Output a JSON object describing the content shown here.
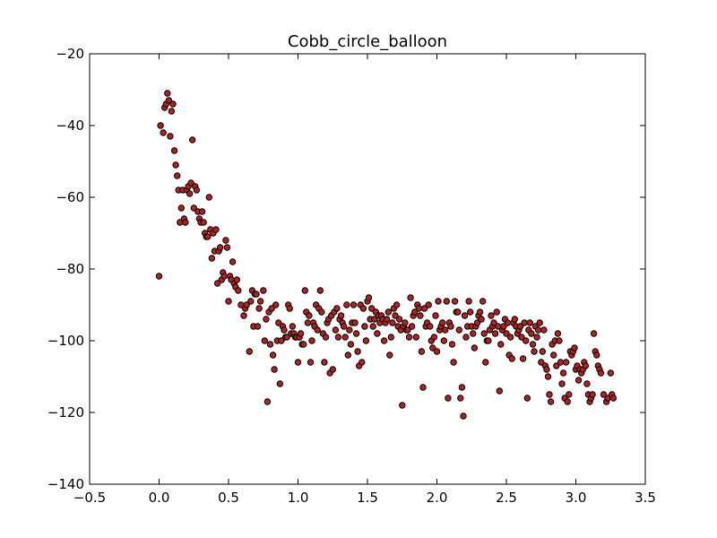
{
  "chart_data": {
    "type": "scatter",
    "title": "Cobb_circle_balloon",
    "xlabel": "",
    "ylabel": "",
    "xlim": [
      -0.5,
      3.5
    ],
    "ylim": [
      -140,
      -20
    ],
    "xticks": [
      -0.5,
      0.0,
      0.5,
      1.0,
      1.5,
      2.0,
      2.5,
      3.0,
      3.5
    ],
    "xtick_labels": [
      "−0.5",
      "0.0",
      "0.5",
      "1.0",
      "1.5",
      "2.0",
      "2.5",
      "3.0",
      "3.5"
    ],
    "yticks": [
      -140,
      -120,
      -100,
      -80,
      -60,
      -40,
      -20
    ],
    "ytick_labels": [
      "−140",
      "−120",
      "−100",
      "−80",
      "−60",
      "−40",
      "−20"
    ],
    "grid": false,
    "legend": false,
    "marker_color": "#b22222",
    "marker_edge_color": "#000000",
    "points": [
      [
        0.0,
        -82
      ],
      [
        0.01,
        -40
      ],
      [
        0.03,
        -42
      ],
      [
        0.04,
        -35
      ],
      [
        0.05,
        -34
      ],
      [
        0.06,
        -31
      ],
      [
        0.07,
        -33
      ],
      [
        0.08,
        -43
      ],
      [
        0.09,
        -36
      ],
      [
        0.1,
        -34
      ],
      [
        0.11,
        -47
      ],
      [
        0.12,
        -51
      ],
      [
        0.13,
        -54
      ],
      [
        0.14,
        -58
      ],
      [
        0.15,
        -67
      ],
      [
        0.16,
        -63
      ],
      [
        0.17,
        -58
      ],
      [
        0.18,
        -66
      ],
      [
        0.19,
        -67
      ],
      [
        0.2,
        -58
      ],
      [
        0.21,
        -57
      ],
      [
        0.22,
        -59
      ],
      [
        0.23,
        -56
      ],
      [
        0.24,
        -44
      ],
      [
        0.25,
        -63
      ],
      [
        0.26,
        -57
      ],
      [
        0.27,
        -58
      ],
      [
        0.28,
        -64
      ],
      [
        0.29,
        -66
      ],
      [
        0.3,
        -67
      ],
      [
        0.31,
        -64
      ],
      [
        0.32,
        -67
      ],
      [
        0.33,
        -70
      ],
      [
        0.34,
        -71
      ],
      [
        0.35,
        -71
      ],
      [
        0.36,
        -60
      ],
      [
        0.37,
        -69
      ],
      [
        0.38,
        -77
      ],
      [
        0.39,
        -70
      ],
      [
        0.4,
        -75
      ],
      [
        0.41,
        -69
      ],
      [
        0.42,
        -84
      ],
      [
        0.43,
        -75
      ],
      [
        0.44,
        -74
      ],
      [
        0.45,
        -83
      ],
      [
        0.46,
        -81
      ],
      [
        0.47,
        -82
      ],
      [
        0.48,
        -72
      ],
      [
        0.49,
        -74
      ],
      [
        0.5,
        -89
      ],
      [
        0.51,
        -82
      ],
      [
        0.52,
        -83
      ],
      [
        0.53,
        -78
      ],
      [
        0.54,
        -84
      ],
      [
        0.55,
        -85
      ],
      [
        0.56,
        -83
      ],
      [
        0.57,
        -86
      ],
      [
        0.59,
        -90
      ],
      [
        0.61,
        -93
      ],
      [
        0.62,
        -91
      ],
      [
        0.63,
        -90
      ],
      [
        0.65,
        -103
      ],
      [
        0.66,
        -89
      ],
      [
        0.67,
        -86
      ],
      [
        0.68,
        -96
      ],
      [
        0.69,
        -87
      ],
      [
        0.7,
        -87
      ],
      [
        0.71,
        -96
      ],
      [
        0.72,
        -91
      ],
      [
        0.73,
        -89
      ],
      [
        0.75,
        -86
      ],
      [
        0.76,
        -100
      ],
      [
        0.77,
        -94
      ],
      [
        0.78,
        -117
      ],
      [
        0.79,
        -92
      ],
      [
        0.8,
        -101
      ],
      [
        0.81,
        -91
      ],
      [
        0.82,
        -104
      ],
      [
        0.83,
        -108
      ],
      [
        0.84,
        -90
      ],
      [
        0.85,
        -100
      ],
      [
        0.86,
        -95
      ],
      [
        0.87,
        -112
      ],
      [
        0.88,
        -100
      ],
      [
        0.89,
        -96
      ],
      [
        0.9,
        -97
      ],
      [
        0.91,
        -99
      ],
      [
        0.92,
        -99
      ],
      [
        0.93,
        -90
      ],
      [
        0.94,
        -91
      ],
      [
        0.95,
        -98
      ],
      [
        0.96,
        -96
      ],
      [
        0.97,
        -98
      ],
      [
        0.98,
        -99
      ],
      [
        0.99,
        -99
      ],
      [
        1.0,
        -106
      ],
      [
        1.01,
        -99
      ],
      [
        1.02,
        -98
      ],
      [
        1.03,
        -101
      ],
      [
        1.04,
        -101
      ],
      [
        1.05,
        -86
      ],
      [
        1.06,
        -92
      ],
      [
        1.07,
        -95
      ],
      [
        1.08,
        -93
      ],
      [
        1.09,
        -106
      ],
      [
        1.1,
        -100
      ],
      [
        1.11,
        -95
      ],
      [
        1.12,
        -96
      ],
      [
        1.13,
        -90
      ],
      [
        1.14,
        -97
      ],
      [
        1.15,
        -91
      ],
      [
        1.16,
        -86
      ],
      [
        1.17,
        -92
      ],
      [
        1.18,
        -98
      ],
      [
        1.19,
        -106
      ],
      [
        1.2,
        -99
      ],
      [
        1.21,
        -95
      ],
      [
        1.22,
        -94
      ],
      [
        1.23,
        -109
      ],
      [
        1.24,
        -93
      ],
      [
        1.25,
        -108
      ],
      [
        1.26,
        -92
      ],
      [
        1.27,
        -97
      ],
      [
        1.28,
        -91
      ],
      [
        1.29,
        -99
      ],
      [
        1.3,
        -94
      ],
      [
        1.31,
        -93
      ],
      [
        1.32,
        -95
      ],
      [
        1.33,
        -96
      ],
      [
        1.34,
        -99
      ],
      [
        1.35,
        -90
      ],
      [
        1.36,
        -104
      ],
      [
        1.37,
        -97
      ],
      [
        1.38,
        -101
      ],
      [
        1.39,
        -95
      ],
      [
        1.4,
        -90
      ],
      [
        1.41,
        -95
      ],
      [
        1.42,
        -98
      ],
      [
        1.43,
        -103
      ],
      [
        1.44,
        -107
      ],
      [
        1.45,
        -90
      ],
      [
        1.46,
        -106
      ],
      [
        1.47,
        -91
      ],
      [
        1.48,
        -96
      ],
      [
        1.49,
        -100
      ],
      [
        1.5,
        -89
      ],
      [
        1.51,
        -88
      ],
      [
        1.52,
        -94
      ],
      [
        1.53,
        -91
      ],
      [
        1.54,
        -96
      ],
      [
        1.55,
        -94
      ],
      [
        1.56,
        -92
      ],
      [
        1.57,
        -98
      ],
      [
        1.58,
        -93
      ],
      [
        1.59,
        -95
      ],
      [
        1.6,
        -93
      ],
      [
        1.61,
        -94
      ],
      [
        1.62,
        -100
      ],
      [
        1.63,
        -95
      ],
      [
        1.64,
        -94
      ],
      [
        1.65,
        -92
      ],
      [
        1.66,
        -104
      ],
      [
        1.67,
        -99
      ],
      [
        1.68,
        -95
      ],
      [
        1.69,
        -91
      ],
      [
        1.7,
        -93
      ],
      [
        1.71,
        -90
      ],
      [
        1.72,
        -96
      ],
      [
        1.73,
        -94
      ],
      [
        1.74,
        -97
      ],
      [
        1.75,
        -118
      ],
      [
        1.76,
        -96
      ],
      [
        1.77,
        -95
      ],
      [
        1.78,
        -97
      ],
      [
        1.79,
        -97
      ],
      [
        1.8,
        -99
      ],
      [
        1.81,
        -88
      ],
      [
        1.82,
        -96
      ],
      [
        1.83,
        -93
      ],
      [
        1.84,
        -92
      ],
      [
        1.85,
        -99
      ],
      [
        1.86,
        -90
      ],
      [
        1.87,
        -91
      ],
      [
        1.88,
        -93
      ],
      [
        1.89,
        -103
      ],
      [
        1.9,
        -113
      ],
      [
        1.91,
        -91
      ],
      [
        1.92,
        -96
      ],
      [
        1.93,
        -95
      ],
      [
        1.94,
        -90
      ],
      [
        1.95,
        -96
      ],
      [
        1.96,
        -100
      ],
      [
        1.97,
        -102
      ],
      [
        1.98,
        -99
      ],
      [
        1.99,
        -93
      ],
      [
        2.0,
        -103
      ],
      [
        2.01,
        -89
      ],
      [
        2.02,
        -97
      ],
      [
        2.03,
        -96
      ],
      [
        2.04,
        -95
      ],
      [
        2.05,
        -100
      ],
      [
        2.06,
        -97
      ],
      [
        2.07,
        -89
      ],
      [
        2.08,
        -116
      ],
      [
        2.09,
        -95
      ],
      [
        2.1,
        -96
      ],
      [
        2.11,
        -101
      ],
      [
        2.12,
        -106
      ],
      [
        2.13,
        -89
      ],
      [
        2.14,
        -92
      ],
      [
        2.15,
        -92
      ],
      [
        2.16,
        -97
      ],
      [
        2.17,
        -116
      ],
      [
        2.18,
        -113
      ],
      [
        2.19,
        -121
      ],
      [
        2.2,
        -93
      ],
      [
        2.21,
        -99
      ],
      [
        2.22,
        -96
      ],
      [
        2.23,
        -89
      ],
      [
        2.24,
        -92
      ],
      [
        2.25,
        -96
      ],
      [
        2.26,
        -98
      ],
      [
        2.27,
        -102
      ],
      [
        2.28,
        -96
      ],
      [
        2.29,
        -95
      ],
      [
        2.3,
        -93
      ],
      [
        2.31,
        -92
      ],
      [
        2.32,
        -94
      ],
      [
        2.33,
        -89
      ],
      [
        2.34,
        -98
      ],
      [
        2.35,
        -106
      ],
      [
        2.36,
        -100
      ],
      [
        2.37,
        -100
      ],
      [
        2.38,
        -97
      ],
      [
        2.39,
        -93
      ],
      [
        2.4,
        -96
      ],
      [
        2.41,
        -95
      ],
      [
        2.42,
        -98
      ],
      [
        2.43,
        -92
      ],
      [
        2.44,
        -96
      ],
      [
        2.45,
        -114
      ],
      [
        2.46,
        -101
      ],
      [
        2.47,
        -97
      ],
      [
        2.48,
        -96
      ],
      [
        2.49,
        -94
      ],
      [
        2.5,
        -98
      ],
      [
        2.51,
        -95
      ],
      [
        2.52,
        -104
      ],
      [
        2.53,
        -99
      ],
      [
        2.54,
        -105
      ],
      [
        2.55,
        -95
      ],
      [
        2.56,
        -94
      ],
      [
        2.57,
        -96
      ],
      [
        2.58,
        -98
      ],
      [
        2.59,
        -97
      ],
      [
        2.6,
        -96
      ],
      [
        2.61,
        -99
      ],
      [
        2.62,
        -105
      ],
      [
        2.63,
        -95
      ],
      [
        2.64,
        -100
      ],
      [
        2.65,
        -116
      ],
      [
        2.66,
        -97
      ],
      [
        2.67,
        -95
      ],
      [
        2.68,
        -98
      ],
      [
        2.69,
        -101
      ],
      [
        2.7,
        -103
      ],
      [
        2.71,
        -96
      ],
      [
        2.72,
        -99
      ],
      [
        2.73,
        -97
      ],
      [
        2.74,
        -95
      ],
      [
        2.75,
        -106
      ],
      [
        2.76,
        -103
      ],
      [
        2.77,
        -97
      ],
      [
        2.78,
        -107
      ],
      [
        2.79,
        -108
      ],
      [
        2.8,
        -110
      ],
      [
        2.81,
        -115
      ],
      [
        2.82,
        -117
      ],
      [
        2.83,
        -101
      ],
      [
        2.84,
        -104
      ],
      [
        2.85,
        -100
      ],
      [
        2.86,
        -107
      ],
      [
        2.87,
        -98
      ],
      [
        2.88,
        -100
      ],
      [
        2.89,
        -106
      ],
      [
        2.9,
        -112
      ],
      [
        2.91,
        -109
      ],
      [
        2.92,
        -116
      ],
      [
        2.93,
        -106
      ],
      [
        2.94,
        -117
      ],
      [
        2.95,
        -115
      ],
      [
        2.96,
        -103
      ],
      [
        2.97,
        -104
      ],
      [
        2.98,
        -103
      ],
      [
        2.99,
        -102
      ],
      [
        3.0,
        -108
      ],
      [
        3.01,
        -107
      ],
      [
        3.02,
        -111
      ],
      [
        3.03,
        -108
      ],
      [
        3.04,
        -109
      ],
      [
        3.05,
        -108
      ],
      [
        3.06,
        -106
      ],
      [
        3.07,
        -107
      ],
      [
        3.08,
        -112
      ],
      [
        3.09,
        -115
      ],
      [
        3.1,
        -117
      ],
      [
        3.11,
        -116
      ],
      [
        3.12,
        -115
      ],
      [
        3.13,
        -98
      ],
      [
        3.14,
        -103
      ],
      [
        3.15,
        -104
      ],
      [
        3.16,
        -107
      ],
      [
        3.17,
        -108
      ],
      [
        3.18,
        -109
      ],
      [
        3.2,
        -115
      ],
      [
        3.22,
        -117
      ],
      [
        3.23,
        -116
      ],
      [
        3.25,
        -109
      ],
      [
        3.26,
        -115
      ],
      [
        3.27,
        -116
      ]
    ]
  }
}
